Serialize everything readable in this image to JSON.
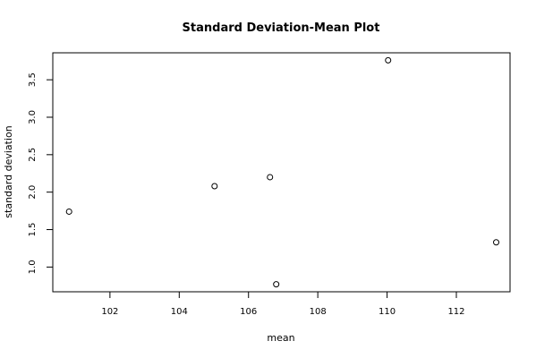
{
  "chart_data": {
    "type": "scatter",
    "title": "Standard Deviation-Mean Plot",
    "xlabel": "mean",
    "ylabel": "standard deviation",
    "xlim": [
      100.35,
      113.55
    ],
    "ylim": [
      0.67,
      3.86
    ],
    "xticks": [
      102,
      104,
      106,
      108,
      110,
      112
    ],
    "yticks": [
      1.0,
      1.5,
      2.0,
      2.5,
      3.0,
      3.5
    ],
    "xtick_labels": [
      "102",
      "104",
      "106",
      "108",
      "110",
      "112"
    ],
    "ytick_labels": [
      "1.0",
      "1.5",
      "2.0",
      "2.5",
      "3.0",
      "3.5"
    ],
    "grid": false,
    "marker": "open-circle",
    "points": [
      {
        "x": 100.82,
        "y": 1.74
      },
      {
        "x": 105.02,
        "y": 2.08
      },
      {
        "x": 106.62,
        "y": 2.2
      },
      {
        "x": 106.8,
        "y": 0.77
      },
      {
        "x": 110.03,
        "y": 3.76
      },
      {
        "x": 113.15,
        "y": 1.33
      }
    ]
  }
}
